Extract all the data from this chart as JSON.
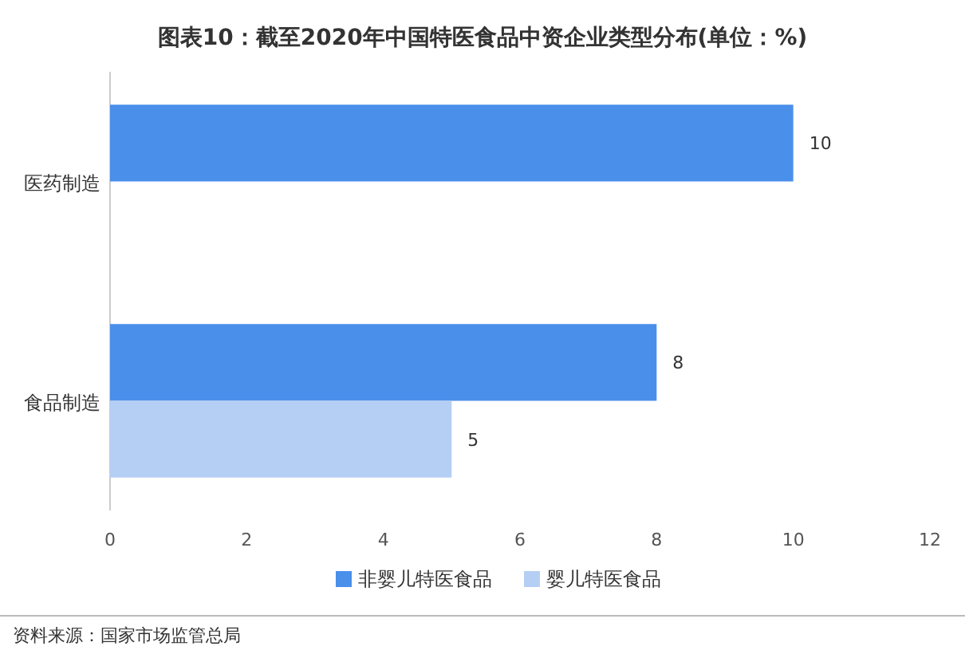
{
  "chart_data": {
    "type": "bar",
    "orientation": "horizontal",
    "title": "图表10：截至2020年中国特医食品中资企业类型分布(单位：%)",
    "categories": [
      "医药制造",
      "食品制造"
    ],
    "series": [
      {
        "name": "非婴儿特医食品",
        "color": "#4a8fea",
        "values": [
          10,
          8
        ]
      },
      {
        "name": "婴儿特医食品",
        "color": "#b5cff4",
        "values": [
          null,
          5
        ]
      }
    ],
    "xlim": [
      0,
      12
    ],
    "xticks": [
      0,
      2,
      4,
      6,
      8,
      10,
      12
    ],
    "data_labels": true,
    "legend": "bottom",
    "annotations": [
      "资料来源：国家市场监管总局"
    ]
  }
}
